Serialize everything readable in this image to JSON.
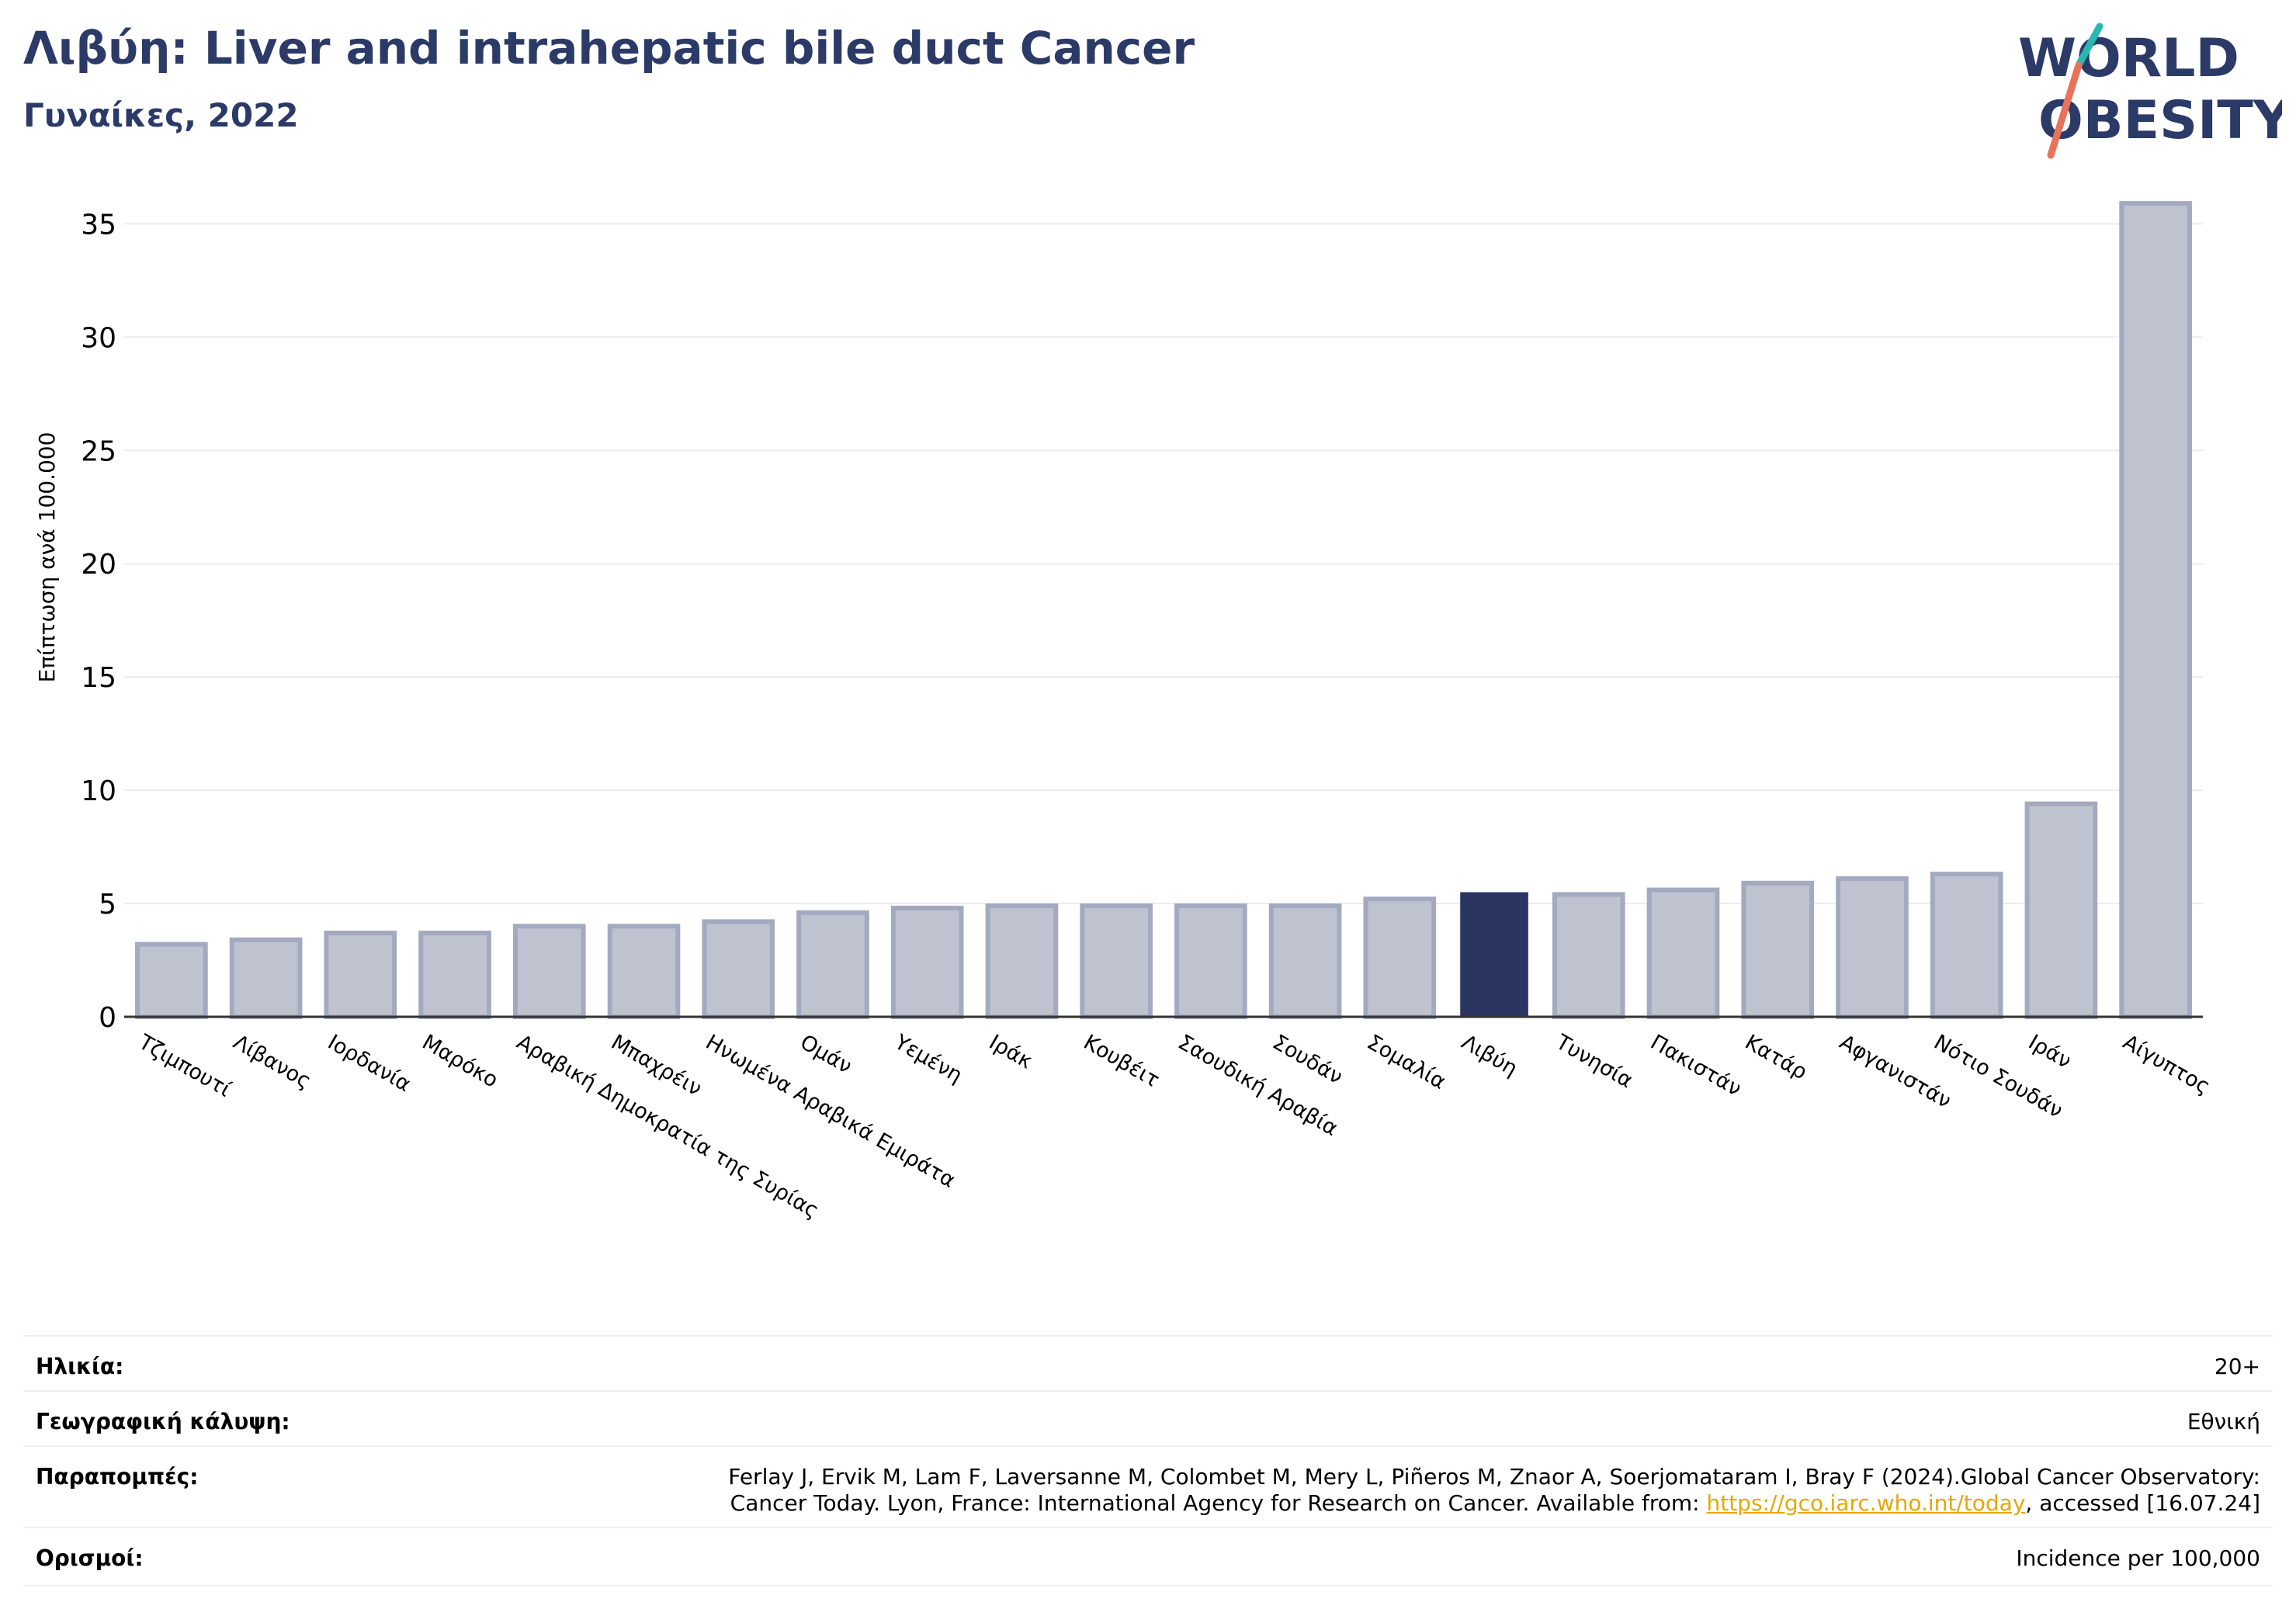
{
  "header": {
    "title": "Λιβύη: Liver and intrahepatic bile duct Cancer",
    "subtitle": "Γυναίκες, 2022"
  },
  "logo": {
    "line1": "WORLD",
    "line2": "OBESITY",
    "accent_color": "#2ab7b2",
    "slash_color": "#e8735a",
    "text_color": "#2b3a67"
  },
  "chart_data": {
    "type": "bar",
    "title": "Λιβύη: Liver and intrahepatic bile duct Cancer",
    "ylabel": "Επίπτωση ανά 100.000",
    "xlabel": "",
    "ylim": [
      0,
      37
    ],
    "yticks": [
      0,
      5,
      10,
      15,
      20,
      25,
      30,
      35
    ],
    "grid": true,
    "highlight": "Λιβύη",
    "colors": {
      "bar": "#bfc3cf",
      "bar_edge": "#a3aabf",
      "highlight": "#2b3562",
      "grid": "#ebebf2",
      "axis": "#333333"
    },
    "categories": [
      "Τζιμπουτί",
      "Λίβανος",
      "Ιορδανία",
      "Μαρόκο",
      "Αραβική Δημοκρατία της Συρίας",
      "Μπαχρέιν",
      "Ηνωμένα Αραβικά Εμιράτα",
      "Ομάν",
      "Υεμένη",
      "Ιράκ",
      "Κουβέιτ",
      "Σαουδική Αραβία",
      "Σουδάν",
      "Σομαλία",
      "Λιβύη",
      "Τυνησία",
      "Πακιστάν",
      "Κατάρ",
      "Αφγανιστάν",
      "Νότιο Σουδάν",
      "Ιράν",
      "Αίγυπτος"
    ],
    "values": [
      3.2,
      3.4,
      3.7,
      3.7,
      4.0,
      4.0,
      4.2,
      4.6,
      4.8,
      4.9,
      4.9,
      4.9,
      4.9,
      5.2,
      5.5,
      5.4,
      5.6,
      5.9,
      6.1,
      6.3,
      9.4,
      35.9
    ]
  },
  "info": {
    "age": {
      "label": "Ηλικία:",
      "value": "20+"
    },
    "coverage": {
      "label": "Γεωγραφική κάλυψη:",
      "value": "Εθνική"
    },
    "references": {
      "label": "Παραπομπές:",
      "line1": "Ferlay J, Ervik M, Lam F, Laversanne M, Colombet M, Mery L, Piñeros M, Znaor A, Soerjomataram I, Bray F (2024).Global Cancer Observatory:",
      "line2_pre": "Cancer Today. Lyon, France: International Agency for Research on Cancer. Available from: ",
      "link": "https://gco.iarc.who.int/today",
      "line2_post": ", accessed [16.07.24]"
    },
    "definitions": {
      "label": "Ορισμοί:",
      "value": "Incidence per 100,000"
    }
  }
}
